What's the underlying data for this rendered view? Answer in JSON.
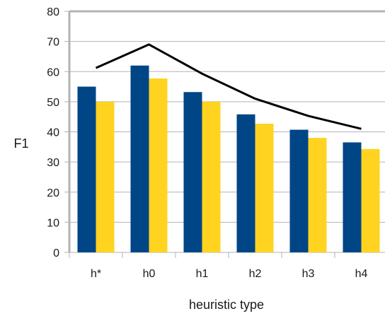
{
  "chart_data": {
    "type": "bar",
    "title": "",
    "xlabel": "heuristic type",
    "ylabel": "F1",
    "categories": [
      "h*",
      "h0",
      "h1",
      "h2",
      "h3",
      "h4"
    ],
    "ylim": [
      0,
      80
    ],
    "yticks": [
      "0",
      "10",
      "20",
      "30",
      "40",
      "50",
      "60",
      "70",
      "80"
    ],
    "grid": true,
    "legend": "none",
    "series": [
      {
        "type": "bar",
        "color": "#004586",
        "values": [
          55,
          62,
          53.2,
          45.8,
          40.7,
          36.5
        ]
      },
      {
        "type": "bar",
        "color": "#ffd320",
        "values": [
          50,
          57.7,
          50,
          42.7,
          38,
          34.3
        ]
      },
      {
        "type": "line",
        "color": "#000000",
        "values": [
          61.2,
          69,
          59.3,
          51,
          45.3,
          41
        ]
      }
    ]
  }
}
